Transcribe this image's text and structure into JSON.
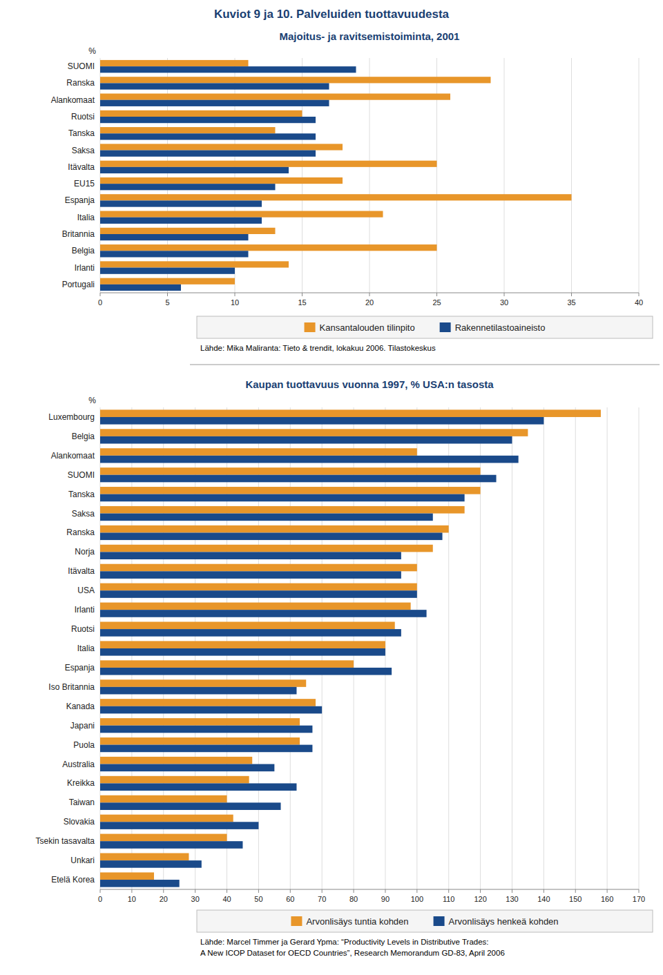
{
  "title": "Kuviot 9 ja 10. Palveluiden tuottavuudesta",
  "chart_data": [
    {
      "type": "bar",
      "orientation": "horizontal",
      "title": "Majoitus- ja ravitsemistoiminta, 2001",
      "xlabel": "%",
      "categories": [
        "SUOMI",
        "Ranska",
        "Alankomaat",
        "Ruotsi",
        "Tanska",
        "Saksa",
        "Itävalta",
        "EU15",
        "Espanja",
        "Italia",
        "Britannia",
        "Belgia",
        "Irlanti",
        "Portugali"
      ],
      "series": [
        {
          "name": "Kansantalouden tilinpito",
          "color": "#E8962A",
          "values": [
            11,
            29,
            26,
            15,
            13,
            18,
            25,
            18,
            35,
            21,
            13,
            25,
            14,
            10
          ]
        },
        {
          "name": "Rakennetilastoaineisto",
          "color": "#1A4A8A",
          "values": [
            19,
            17,
            17,
            16,
            16,
            16,
            14,
            13,
            12,
            12,
            11,
            11,
            10,
            6
          ]
        }
      ],
      "xlim": [
        0,
        40
      ],
      "xticks": [
        0,
        5,
        10,
        15,
        20,
        25,
        30,
        35,
        40
      ],
      "grid": true,
      "legend": "bottom",
      "source": "Lähde: Mika Maliranta: Tieto & trendit, lokakuu 2006. Tilastokeskus"
    },
    {
      "type": "bar",
      "orientation": "horizontal",
      "title": "Kaupan tuottavuus vuonna 1997, % USA:n tasosta",
      "xlabel": "%",
      "categories": [
        "Luxembourg",
        "Belgia",
        "Alankomaat",
        "SUOMI",
        "Tanska",
        "Saksa",
        "Ranska",
        "Norja",
        "Itävalta",
        "USA",
        "Irlanti",
        "Ruotsi",
        "Italia",
        "Espanja",
        "Iso Britannia",
        "Kanada",
        "Japani",
        "Puola",
        "Australia",
        "Kreikka",
        "Taiwan",
        "Slovakia",
        "Tsekin tasavalta",
        "Unkari",
        "Etelä Korea"
      ],
      "series": [
        {
          "name": "Arvonlisäys tuntia kohden",
          "color": "#E8962A",
          "values": [
            158,
            135,
            100,
            120,
            120,
            115,
            110,
            105,
            100,
            100,
            98,
            93,
            90,
            80,
            65,
            68,
            63,
            63,
            48,
            47,
            40,
            42,
            40,
            28,
            17
          ]
        },
        {
          "name": "Arvonlisäys henkeä kohden",
          "color": "#1A4A8A",
          "values": [
            140,
            130,
            132,
            125,
            115,
            105,
            108,
            95,
            95,
            100,
            103,
            95,
            90,
            92,
            62,
            70,
            67,
            67,
            55,
            62,
            57,
            50,
            45,
            32,
            25
          ]
        }
      ],
      "xlim": [
        0,
        170
      ],
      "xticks": [
        0,
        10,
        20,
        30,
        40,
        50,
        60,
        70,
        80,
        90,
        100,
        110,
        120,
        130,
        140,
        150,
        160,
        170
      ],
      "grid": true,
      "legend": "bottom",
      "source": "Lähde: Marcel Timmer ja Gerard Ypma: “Productivity Levels in Distributive Trades:\nA New ICOP Dataset for OECD Countries”, Research Memorandum GD-83, April 2006"
    }
  ]
}
